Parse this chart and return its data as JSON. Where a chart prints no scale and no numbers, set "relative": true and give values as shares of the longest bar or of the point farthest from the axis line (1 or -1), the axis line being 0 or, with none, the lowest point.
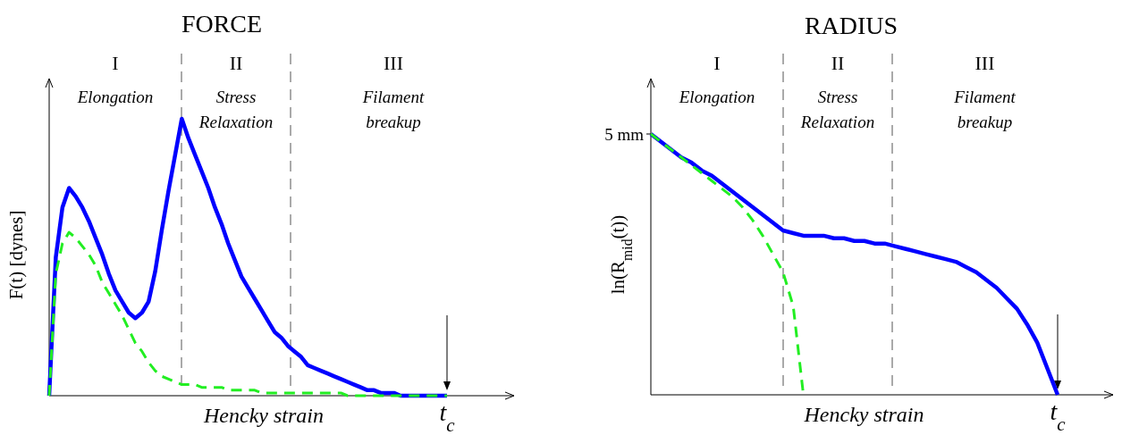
{
  "chart_data": [
    {
      "type": "line",
      "title": "FORCE",
      "xlabel": "Hencky strain",
      "ylabel": "F(t)  [dynes]",
      "relative": true,
      "categories": [
        null,
        null,
        null,
        null,
        null,
        null,
        null,
        null,
        null,
        null,
        null,
        null,
        null,
        null,
        null,
        null,
        null,
        null,
        null,
        null,
        null,
        null,
        null,
        null,
        null,
        null,
        null,
        null,
        null,
        null,
        null,
        null,
        null,
        null,
        null,
        null,
        null,
        null,
        null,
        null,
        null,
        null,
        null,
        null,
        null,
        null,
        null,
        null,
        null,
        null,
        null,
        null,
        null,
        null,
        null,
        null,
        null,
        null,
        null,
        null,
        null
      ],
      "series": [
        {
          "color": "#0000ff",
          "line_style": "solid",
          "values": [
            0,
            0.5,
            0.68,
            0.75,
            0.72,
            0.68,
            0.63,
            0.57,
            0.51,
            0.44,
            0.38,
            0.34,
            0.3,
            0.28,
            0.3,
            0.34,
            0.45,
            0.6,
            0.74,
            0.87,
            1.0,
            0.93,
            0.87,
            0.81,
            0.75,
            0.68,
            0.62,
            0.55,
            0.49,
            0.43,
            0.39,
            0.35,
            0.31,
            0.27,
            0.23,
            0.21,
            0.18,
            0.16,
            0.14,
            0.11,
            0.1,
            0.09,
            0.08,
            0.07,
            0.06,
            0.05,
            0.04,
            0.03,
            0.02,
            0.02,
            0.01,
            0.01,
            0.01,
            0,
            0,
            0,
            0,
            0,
            0,
            0,
            0
          ]
        },
        {
          "color": "#22ee22",
          "line_style": "dashed",
          "values": [
            0,
            0.44,
            0.55,
            0.59,
            0.57,
            0.54,
            0.51,
            0.47,
            0.41,
            0.37,
            0.33,
            0.29,
            0.24,
            0.19,
            0.16,
            0.12,
            0.09,
            0.07,
            0.06,
            0.05,
            0.04,
            0.04,
            0.04,
            0.03,
            0.03,
            0.03,
            0.03,
            0.02,
            0.02,
            0.02,
            0.02,
            0.02,
            0.01,
            0.01,
            0.01,
            0.01,
            0.01,
            0.01,
            0.01,
            0.01,
            0.01,
            0.01,
            0.01,
            0.01,
            0.01,
            0,
            0,
            0,
            0,
            0,
            0,
            0,
            0,
            0,
            0,
            0,
            0,
            0,
            0,
            0,
            0
          ]
        }
      ],
      "annotations": [
        "I",
        "Elongation",
        "II",
        "Stress Relaxation",
        "III",
        "Filament breakup",
        {
          "text": "t$_{c}$"
        }
      ]
    },
    {
      "type": "line",
      "title": "RADIUS",
      "xlabel": "Hencky strain",
      "ylabel": "ln(R$_{mid}$(t))",
      "relative": true,
      "categories": [
        null,
        null,
        null,
        null,
        null,
        null,
        null,
        null,
        null,
        null,
        null,
        null,
        null,
        null,
        null,
        null,
        null,
        null,
        null,
        null,
        null,
        null,
        null,
        null,
        null,
        null,
        null,
        null,
        null,
        null,
        null,
        null,
        null,
        null,
        null,
        null,
        null,
        null,
        null,
        null,
        null
      ],
      "series": [
        {
          "color": "#0000ff",
          "line_style": "solid",
          "values": [
            1.0,
            0.97,
            0.94,
            0.91,
            0.89,
            0.86,
            0.84,
            0.81,
            0.78,
            0.75,
            0.72,
            0.69,
            0.66,
            0.63,
            0.62,
            0.61,
            0.61,
            0.61,
            0.6,
            0.6,
            0.59,
            0.59,
            0.58,
            0.58,
            0.57,
            0.56,
            0.55,
            0.54,
            0.53,
            0.52,
            0.51,
            0.49,
            0.47,
            0.44,
            0.41,
            0.37,
            0.33,
            0.27,
            0.2,
            0.1,
            0
          ]
        },
        {
          "color": "#22ee22",
          "line_style": "dashed",
          "values": [
            1.0,
            0.97,
            0.94,
            0.91,
            0.88,
            0.85,
            0.82,
            0.79,
            0.76,
            0.72,
            0.67,
            0.61,
            0.54,
            0.47,
            0.34,
            0,
            null,
            null,
            null,
            null,
            null,
            null,
            null,
            null,
            null,
            null,
            null,
            null,
            null,
            null,
            null,
            null,
            null,
            null,
            null,
            null,
            null,
            null,
            null,
            null,
            null
          ]
        }
      ],
      "annotations": [
        "5 mm",
        "I",
        "Elongation",
        "II",
        "Stress Relaxation",
        "III",
        "Filament breakup",
        {
          "text": "t$_{c}$"
        }
      ]
    }
  ]
}
